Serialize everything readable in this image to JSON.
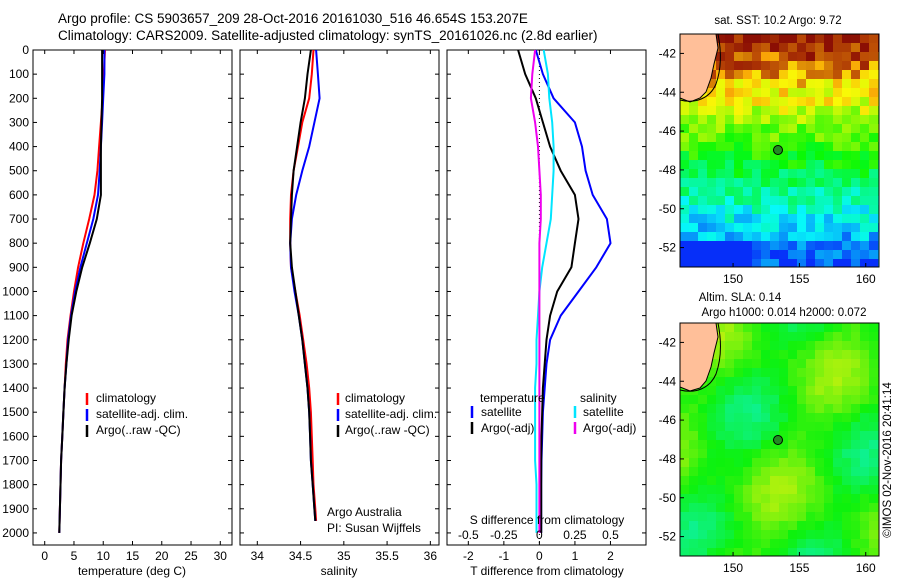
{
  "header": {
    "line1": "Argo profile: CS 5903657_209 28-Oct-2016 20161030_516 46.654S 153.207E",
    "line2": "Climatology: CARS2009. Satellite-adjusted climatology: synTS_20161026.nc (2.8d earlier)"
  },
  "colors": {
    "climatology": "#ff0000",
    "satellite": "#0000ff",
    "argo": "#000000",
    "cyan": "#00e5ff",
    "magenta": "#ee00ee",
    "land": "#ffbf99"
  },
  "panels": {
    "temperature": {
      "xlabel": "temperature (deg C)",
      "xticks": [
        "0",
        "5",
        "10",
        "15",
        "20",
        "25",
        "30"
      ],
      "legend": [
        "climatology",
        "satellite-adj. clim.",
        "Argo(..raw -QC)"
      ]
    },
    "salinity": {
      "xlabel": "salinity",
      "xticks": [
        "34",
        "34.5",
        "35",
        "35.5",
        "36"
      ],
      "legend": [
        "climatology",
        "satellite-adj. clim.",
        "Argo(..raw -QC)"
      ],
      "note1": "Argo Australia",
      "note2": "PI: Susan Wijffels"
    },
    "difference": {
      "xlabel_bottom": "T difference from climatology",
      "xlabel_top": "S difference from climatology",
      "xticks_bottom": [
        "-2",
        "-1",
        "0",
        "1",
        "2"
      ],
      "xticks_top": [
        "-0.5",
        "-0.25",
        "0",
        "0.25",
        "0.5"
      ],
      "legend_temp_title": "temperature",
      "legend_sal_title": "salinity",
      "legend_temp": [
        "satellite",
        "Argo(-adj)"
      ],
      "legend_sal": [
        "satellite",
        "Argo(-adj)"
      ]
    },
    "depth_ticks": [
      "0",
      "100",
      "200",
      "300",
      "400",
      "500",
      "600",
      "700",
      "800",
      "900",
      "1000",
      "1100",
      "1200",
      "1300",
      "1400",
      "1500",
      "1600",
      "1700",
      "1800",
      "1900",
      "2000"
    ]
  },
  "maps": {
    "sst_title": "sat. SST: 10.2  Argo: 9.72",
    "sla_title1": "Altim. SLA: 0.14",
    "sla_title2": "Argo h1000: 0.014  h2000: 0.072",
    "yticks": [
      "-42",
      "-44",
      "-46",
      "-48",
      "-50",
      "-52"
    ],
    "xticks": [
      "150",
      "155",
      "160"
    ],
    "float_lon": 153.207,
    "float_lat": -46.654
  },
  "side_label": "©IMOS 02-Nov-2016 20:41:14",
  "chart_data": [
    {
      "type": "line",
      "title": "",
      "xlabel": "temperature (deg C)",
      "ylabel": "",
      "xlim": [
        -2,
        32
      ],
      "ylim": [
        2050,
        0
      ],
      "series": [
        {
          "name": "climatology",
          "depth": [
            0,
            100,
            200,
            300,
            400,
            500,
            600,
            700,
            800,
            900,
            1000,
            1100,
            1200,
            1300,
            1400,
            1500,
            1600,
            1700,
            1800,
            1900,
            2000
          ],
          "values": [
            10.3,
            10.1,
            9.9,
            9.6,
            9.3,
            9.0,
            8.5,
            7.6,
            6.6,
            5.7,
            5.0,
            4.4,
            3.9,
            3.6,
            3.4,
            3.2,
            3.0,
            2.8,
            2.7,
            2.6,
            2.5
          ]
        },
        {
          "name": "satellite-adj. clim.",
          "depth": [
            0,
            100,
            200,
            300,
            400,
            500,
            600,
            700,
            800,
            900,
            1000,
            1100,
            1200,
            1300,
            1400,
            1500,
            1600,
            1700,
            1800,
            1900,
            2000
          ],
          "values": [
            10.2,
            10.2,
            10.0,
            9.8,
            9.6,
            9.4,
            9.1,
            8.3,
            7.2,
            6.1,
            5.2,
            4.5,
            4.0,
            3.7,
            3.4,
            3.2,
            3.0,
            2.8,
            2.7,
            2.6,
            2.5
          ]
        },
        {
          "name": "Argo(..raw -QC)",
          "depth": [
            0,
            100,
            200,
            300,
            400,
            500,
            600,
            700,
            800,
            900,
            1000,
            1100,
            1200,
            1300,
            1400,
            1500,
            1600,
            1700,
            1800,
            1900,
            2000
          ],
          "values": [
            9.8,
            9.8,
            9.8,
            9.7,
            9.6,
            9.6,
            9.6,
            8.9,
            7.7,
            6.4,
            5.4,
            4.6,
            4.1,
            3.7,
            3.4,
            3.2,
            3.0,
            2.8,
            2.7,
            2.6,
            2.5
          ]
        }
      ]
    },
    {
      "type": "line",
      "title": "",
      "xlabel": "salinity",
      "ylabel": "",
      "xlim": [
        33.8,
        36.1
      ],
      "ylim": [
        2050,
        0
      ],
      "series": [
        {
          "name": "climatology",
          "depth": [
            0,
            100,
            200,
            300,
            400,
            500,
            600,
            700,
            800,
            900,
            1000,
            1100,
            1200,
            1300,
            1400,
            1500,
            1600,
            1700,
            1800,
            1900,
            1950
          ],
          "values": [
            34.65,
            34.63,
            34.6,
            34.52,
            34.47,
            34.42,
            34.39,
            34.38,
            34.38,
            34.39,
            34.44,
            34.49,
            34.53,
            34.57,
            34.6,
            34.62,
            34.63,
            34.64,
            34.65,
            34.67,
            34.68
          ]
        },
        {
          "name": "satellite-adj. clim.",
          "depth": [
            0,
            100,
            200,
            300,
            400,
            500,
            600,
            700,
            800,
            900,
            1000,
            1100,
            1200,
            1300,
            1400,
            1500,
            1600,
            1700,
            1800,
            1900,
            1950
          ],
          "values": [
            34.68,
            34.7,
            34.72,
            34.66,
            34.6,
            34.52,
            34.45,
            34.4,
            34.38,
            34.39,
            34.43,
            34.48,
            34.52,
            34.55,
            34.58,
            34.6,
            34.61,
            34.62,
            34.64,
            34.66,
            34.67
          ]
        },
        {
          "name": "Argo(..raw -QC)",
          "depth": [
            0,
            100,
            200,
            300,
            400,
            500,
            600,
            700,
            800,
            900,
            1000,
            1100,
            1200,
            1300,
            1400,
            1500,
            1600,
            1700,
            1800,
            1900,
            1950
          ],
          "values": [
            34.62,
            34.58,
            34.55,
            34.5,
            34.46,
            34.42,
            34.4,
            34.39,
            34.38,
            34.4,
            34.44,
            34.48,
            34.52,
            34.55,
            34.58,
            34.6,
            34.61,
            34.62,
            34.64,
            34.66,
            34.67
          ]
        }
      ]
    },
    {
      "type": "line",
      "title": "",
      "xlabel": "T difference from climatology",
      "ylabel": "",
      "xlim": [
        -2.6,
        3.0
      ],
      "ylim": [
        2050,
        0
      ],
      "series": [
        {
          "name": "temperature satellite",
          "depth": [
            0,
            100,
            200,
            300,
            400,
            500,
            600,
            700,
            800,
            900,
            1000,
            1100,
            1200,
            1300,
            1400,
            1500,
            1600,
            1700,
            1800,
            1900,
            2000
          ],
          "values": [
            -0.1,
            0.1,
            0.4,
            1.0,
            1.2,
            1.3,
            1.5,
            1.9,
            2.0,
            1.6,
            1.1,
            0.6,
            0.3,
            0.2,
            0.15,
            0.1,
            0.08,
            0.06,
            0.05,
            0.05,
            0.05
          ]
        },
        {
          "name": "temperature Argo(-adj)",
          "depth": [
            0,
            100,
            200,
            300,
            400,
            500,
            600,
            700,
            800,
            900,
            1000,
            1100,
            1200,
            1300,
            1400,
            1500,
            1600,
            1700,
            1800,
            1900,
            2000
          ],
          "values": [
            -0.6,
            -0.4,
            -0.1,
            0.1,
            0.3,
            0.6,
            1.0,
            1.1,
            1.0,
            0.9,
            0.5,
            0.3,
            0.2,
            0.15,
            0.1,
            0.08,
            0.06,
            0.05,
            0.05,
            0.05,
            0.05
          ]
        },
        {
          "name": "salinity satellite",
          "depth": [
            0,
            100,
            200,
            300,
            400,
            500,
            600,
            700,
            800,
            900,
            1000,
            1100,
            1200,
            1300,
            1400,
            1500,
            1600,
            1700,
            1800,
            1900,
            2000
          ],
          "values": [
            0.03,
            0.06,
            0.07,
            0.09,
            0.1,
            0.1,
            0.09,
            0.08,
            0.05,
            0.02,
            0.0,
            -0.01,
            -0.02,
            -0.02,
            -0.03,
            -0.03,
            -0.03,
            -0.03,
            -0.02,
            -0.02,
            -0.02
          ]
        },
        {
          "name": "salinity Argo(-adj)",
          "depth": [
            0,
            100,
            200,
            300,
            400,
            500,
            600,
            700,
            800,
            900,
            1000,
            1100,
            1200,
            1300,
            1400,
            1500,
            1600,
            1700,
            1800,
            1900,
            2000
          ],
          "values": [
            -0.03,
            -0.05,
            -0.06,
            -0.03,
            -0.01,
            0.0,
            0.01,
            0.01,
            0.0,
            0.0,
            0.0,
            0.0,
            0.0,
            0.0,
            0.0,
            0.0,
            0.0,
            0.0,
            0.0,
            0.0,
            0.0
          ]
        }
      ]
    }
  ]
}
